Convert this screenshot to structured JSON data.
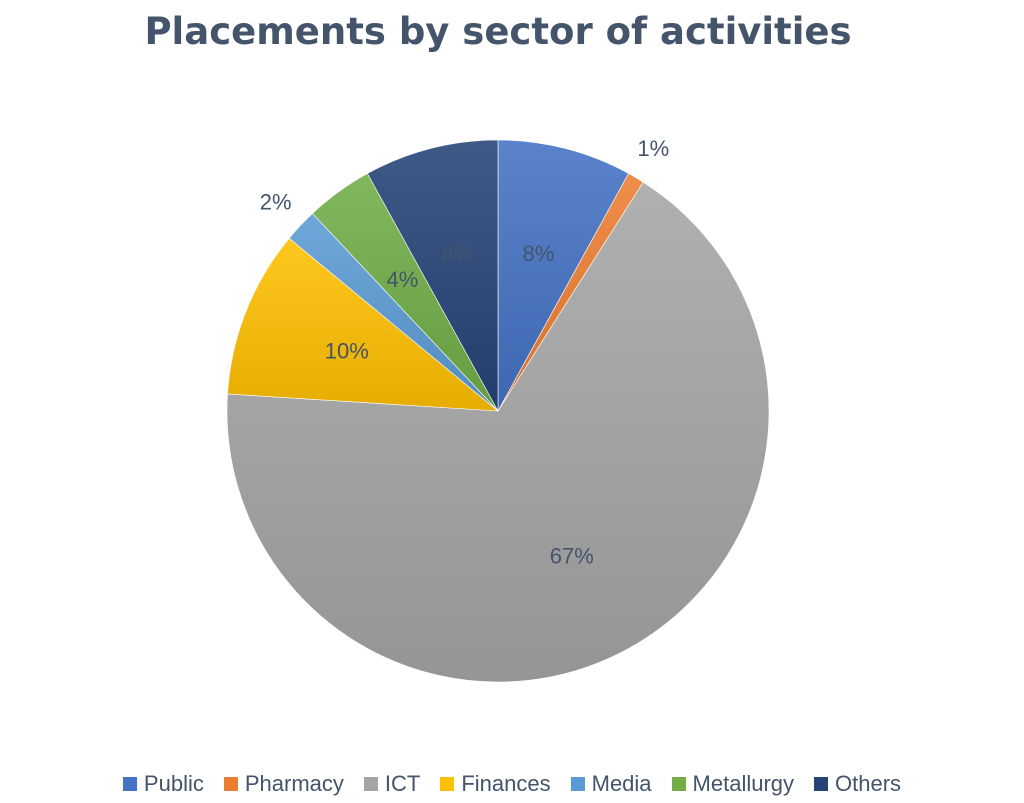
{
  "chart_data": {
    "type": "pie",
    "title": "Placements by sector of activities",
    "slices": [
      {
        "label": "Public",
        "value": 8,
        "display": "8%",
        "color": "#4472c4"
      },
      {
        "label": "Pharmacy",
        "value": 1,
        "display": "1%",
        "color": "#ed7d31"
      },
      {
        "label": "ICT",
        "value": 67,
        "display": "67%",
        "color": "#a5a5a5"
      },
      {
        "label": "Finances",
        "value": 10,
        "display": "10%",
        "color": "#ffc000"
      },
      {
        "label": "Media",
        "value": 2,
        "display": "2%",
        "color": "#5b9bd5"
      },
      {
        "label": "Metallurgy",
        "value": 4,
        "display": "4%",
        "color": "#70ad47"
      },
      {
        "label": "Others",
        "value": 8,
        "display": "8%",
        "color": "#264478"
      }
    ],
    "start_angle": "12 o'clock",
    "direction": "clockwise",
    "legend_position": "bottom"
  }
}
